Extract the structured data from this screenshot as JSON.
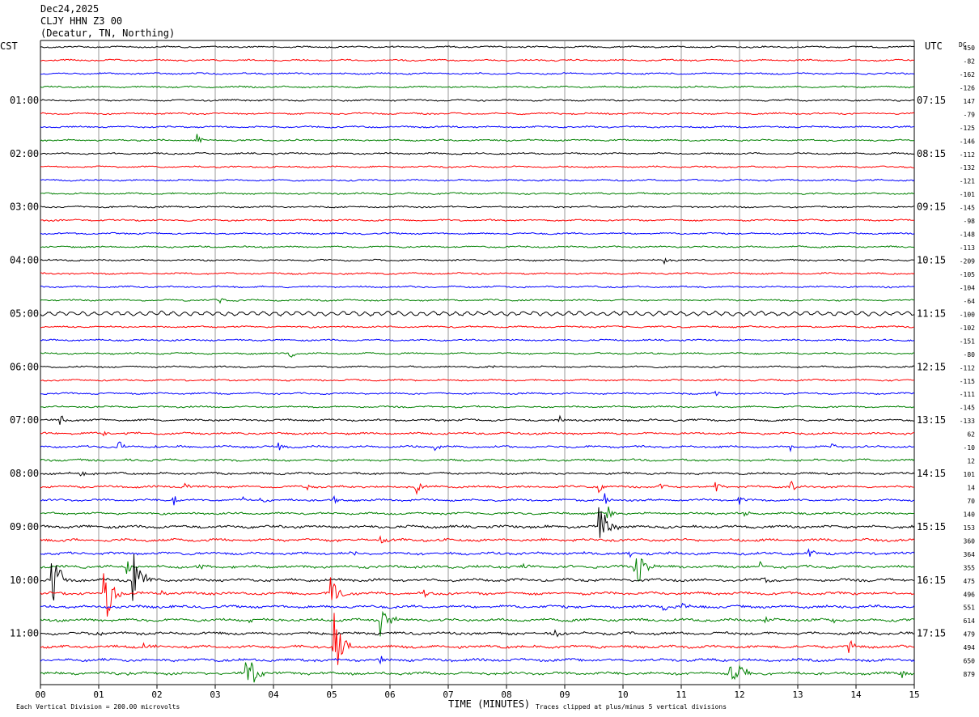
{
  "header": {
    "date": "Dec24,2025",
    "station": "CLJY HHN Z3 00",
    "location": "(Decatur, TN, Northing)"
  },
  "chart_data": {
    "type": "line",
    "title": "",
    "left_axis_label": "CST",
    "right_axis_label": "UTC",
    "dc_label": "DC",
    "xlabel": "TIME (MINUTES)",
    "x_ticks": [
      "00",
      "01",
      "02",
      "03",
      "04",
      "05",
      "06",
      "07",
      "08",
      "09",
      "10",
      "11",
      "12",
      "13",
      "14",
      "15"
    ],
    "xlim": [
      0,
      15
    ],
    "left_hour_labels": [
      "01:00",
      "02:00",
      "03:00",
      "04:00",
      "05:00",
      "06:00",
      "07:00",
      "08:00",
      "09:00",
      "10:00",
      "11:00"
    ],
    "right_hour_labels": [
      "07:15",
      "08:15",
      "09:15",
      "10:15",
      "11:15",
      "12:15",
      "13:15",
      "14:15",
      "15:15",
      "16:15",
      "17:15"
    ],
    "dc_values": [
      "450",
      "-82",
      "-162",
      "-126",
      "147",
      "-79",
      "-125",
      "-146",
      "-112",
      "-132",
      "-121",
      "-101",
      "-145",
      "-98",
      "-148",
      "-113",
      "-209",
      "-105",
      "-104",
      "-64",
      "-100",
      "-102",
      "-151",
      "-80",
      "-112",
      "-115",
      "-111",
      "-145",
      "-133",
      "62",
      "-10",
      "12",
      "101",
      "14",
      "70",
      "140",
      "153",
      "360",
      "364",
      "355",
      "475",
      "496",
      "551",
      "614",
      "479",
      "494",
      "650",
      "879"
    ],
    "trace_colors": [
      "#000000",
      "#ff0000",
      "#0000ff",
      "#008000"
    ],
    "trace_count": 48,
    "minutes_per_trace": 15,
    "grid": true,
    "footer_left": "Each Vertical Division =  200.00 microvolts",
    "footer_right": "Traces clipped at plus/minus 5 vertical divisions",
    "events": [
      {
        "trace": 7,
        "minute": 2.7,
        "amp": 1.0
      },
      {
        "trace": 16,
        "minute": 10.7,
        "amp": 0.7
      },
      {
        "trace": 19,
        "minute": 3.1,
        "amp": 0.5
      },
      {
        "trace": 23,
        "minute": 4.3,
        "amp": 0.6
      },
      {
        "trace": 24,
        "minute": 7.7,
        "amp": 0.7
      },
      {
        "trace": 26,
        "minute": 11.6,
        "amp": 0.8
      },
      {
        "trace": 28,
        "minute": 0.35,
        "amp": 0.8
      },
      {
        "trace": 28,
        "minute": 8.9,
        "amp": 0.6
      },
      {
        "trace": 29,
        "minute": 1.1,
        "amp": 0.6
      },
      {
        "trace": 30,
        "minute": 1.35,
        "amp": 1.0
      },
      {
        "trace": 30,
        "minute": 1.95,
        "amp": 0.5
      },
      {
        "trace": 30,
        "minute": 4.1,
        "amp": 0.6
      },
      {
        "trace": 30,
        "minute": 6.8,
        "amp": 0.8
      },
      {
        "trace": 30,
        "minute": 12.9,
        "amp": 0.6
      },
      {
        "trace": 30,
        "minute": 13.6,
        "amp": 0.6
      },
      {
        "trace": 32,
        "minute": 0.7,
        "amp": 0.8
      },
      {
        "trace": 33,
        "minute": 2.5,
        "amp": 0.5
      },
      {
        "trace": 33,
        "minute": 4.6,
        "amp": 0.5
      },
      {
        "trace": 33,
        "minute": 6.45,
        "amp": 1.2
      },
      {
        "trace": 33,
        "minute": 8.35,
        "amp": 0.4
      },
      {
        "trace": 33,
        "minute": 9.6,
        "amp": 0.7
      },
      {
        "trace": 33,
        "minute": 10.65,
        "amp": 0.4
      },
      {
        "trace": 33,
        "minute": 11.6,
        "amp": 0.9
      },
      {
        "trace": 33,
        "minute": 12.9,
        "amp": 0.8
      },
      {
        "trace": 34,
        "minute": 2.3,
        "amp": 0.9
      },
      {
        "trace": 34,
        "minute": 3.5,
        "amp": 0.5
      },
      {
        "trace": 34,
        "minute": 3.8,
        "amp": 0.5
      },
      {
        "trace": 34,
        "minute": 5.05,
        "amp": 0.7
      },
      {
        "trace": 34,
        "minute": 9.7,
        "amp": 1.0
      },
      {
        "trace": 34,
        "minute": 12.0,
        "amp": 0.6
      },
      {
        "trace": 35,
        "minute": 9.75,
        "amp": 1.1
      },
      {
        "trace": 35,
        "minute": 12.1,
        "amp": 0.5
      },
      {
        "trace": 36,
        "minute": 9.6,
        "amp": 3.5
      },
      {
        "trace": 37,
        "minute": 5.85,
        "amp": 0.8
      },
      {
        "trace": 38,
        "minute": 5.4,
        "amp": 0.6
      },
      {
        "trace": 38,
        "minute": 10.1,
        "amp": 0.8
      },
      {
        "trace": 38,
        "minute": 13.2,
        "amp": 0.7
      },
      {
        "trace": 39,
        "minute": 1.5,
        "amp": 1.2
      },
      {
        "trace": 39,
        "minute": 2.7,
        "amp": 1.0
      },
      {
        "trace": 39,
        "minute": 8.3,
        "amp": 0.6
      },
      {
        "trace": 39,
        "minute": 10.2,
        "amp": 4.0
      },
      {
        "trace": 39,
        "minute": 12.35,
        "amp": 1.2
      },
      {
        "trace": 40,
        "minute": 0.2,
        "amp": 5.0
      },
      {
        "trace": 40,
        "minute": 1.6,
        "amp": 4.0
      },
      {
        "trace": 40,
        "minute": 12.4,
        "amp": 0.9
      },
      {
        "trace": 41,
        "minute": 1.1,
        "amp": 5.0
      },
      {
        "trace": 41,
        "minute": 2.1,
        "amp": 0.5
      },
      {
        "trace": 41,
        "minute": 5.0,
        "amp": 2.5
      },
      {
        "trace": 41,
        "minute": 6.6,
        "amp": 0.7
      },
      {
        "trace": 42,
        "minute": 10.7,
        "amp": 0.5
      },
      {
        "trace": 42,
        "minute": 11.05,
        "amp": 0.7
      },
      {
        "trace": 43,
        "minute": 3.6,
        "amp": 0.6
      },
      {
        "trace": 43,
        "minute": 5.85,
        "amp": 2.5
      },
      {
        "trace": 43,
        "minute": 12.45,
        "amp": 0.5
      },
      {
        "trace": 43,
        "minute": 13.6,
        "amp": 0.6
      },
      {
        "trace": 44,
        "minute": 1.0,
        "amp": 0.5
      },
      {
        "trace": 44,
        "minute": 8.85,
        "amp": 0.6
      },
      {
        "trace": 45,
        "minute": 1.8,
        "amp": 0.4
      },
      {
        "trace": 45,
        "minute": 5.05,
        "amp": 5.0
      },
      {
        "trace": 45,
        "minute": 13.9,
        "amp": 1.2
      },
      {
        "trace": 46,
        "minute": 5.85,
        "amp": 0.6
      },
      {
        "trace": 47,
        "minute": 1.5,
        "amp": 0.6
      },
      {
        "trace": 47,
        "minute": 3.55,
        "amp": 4.0
      },
      {
        "trace": 47,
        "minute": 11.85,
        "amp": 5.0
      },
      {
        "trace": 47,
        "minute": 14.8,
        "amp": 0.6
      }
    ]
  }
}
